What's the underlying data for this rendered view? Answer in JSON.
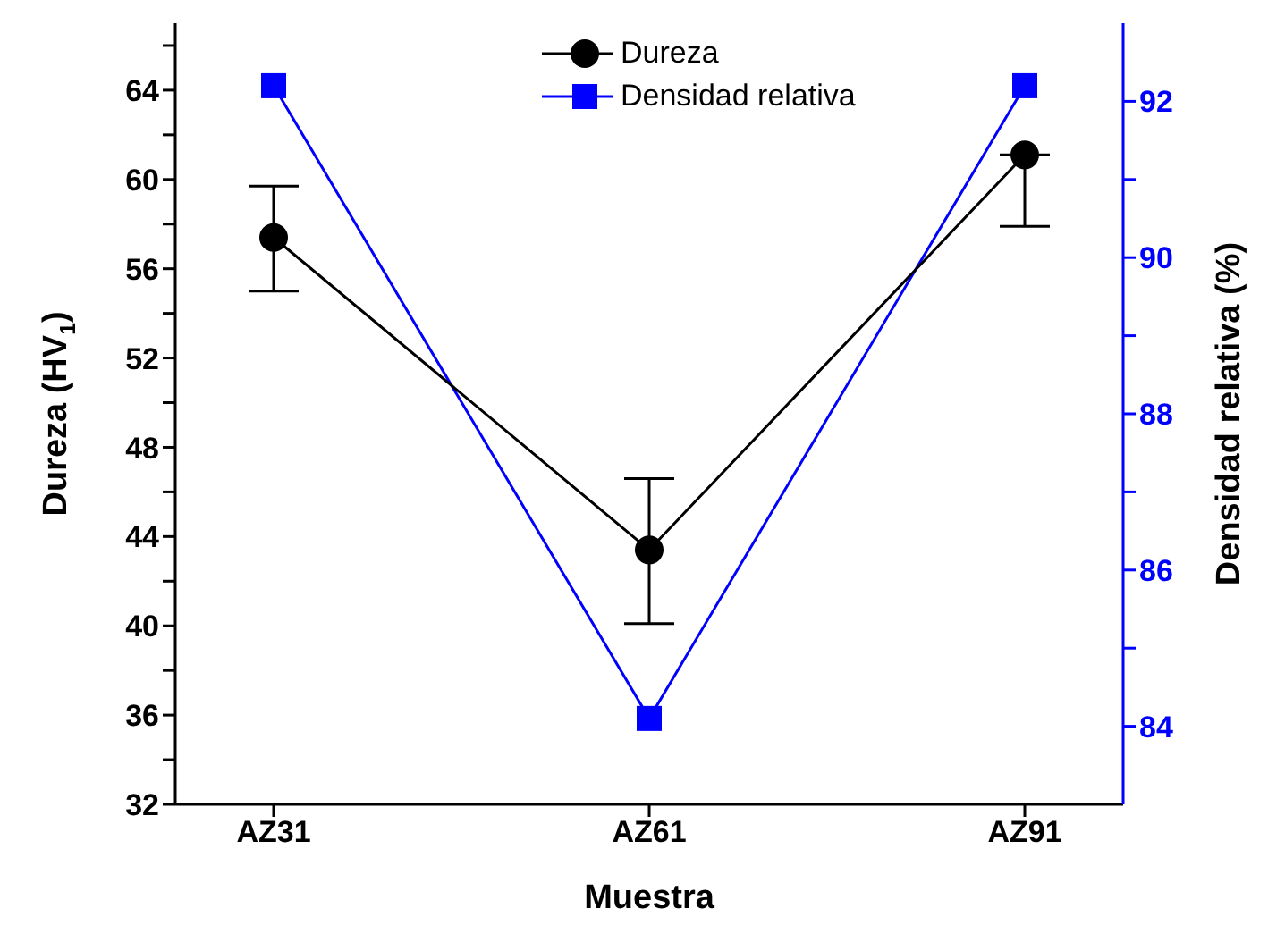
{
  "chart_data": {
    "type": "line",
    "xlabel": "Muestra",
    "ylabel": "Dureza (HV$_{1}$)",
    "y2label": "Densidad relativa (%)",
    "categories": [
      "AZ31",
      "AZ61",
      "AZ91"
    ],
    "series": [
      {
        "name": "Dureza",
        "color": "#000000",
        "marker": "circle",
        "values": [
          57.4,
          43.4,
          61.1
        ],
        "errors": [
          [
            55.0,
            59.7
          ],
          [
            40.1,
            46.6
          ],
          [
            57.9,
            61.1
          ]
        ]
      },
      {
        "name": "Densidad relativa",
        "color": "#0000ff",
        "marker": "square",
        "axis": "y2",
        "values": [
          92.2,
          84.1,
          92.2
        ]
      }
    ],
    "ylim": [
      32,
      67
    ],
    "yticks": [
      32,
      {
        "value": 34,
        "label": null
      },
      36,
      {
        "value": 38,
        "label": null
      },
      40,
      {
        "value": 42,
        "label": null
      },
      44,
      {
        "value": 46,
        "label": null
      },
      48,
      {
        "value": 50,
        "label": null
      },
      52,
      {
        "value": 54,
        "label": null
      },
      56,
      {
        "value": 58,
        "label": null
      },
      60,
      {
        "value": 62,
        "label": null
      },
      64,
      {
        "value": 66,
        "label": null
      }
    ],
    "y2lim": [
      83,
      93
    ],
    "y2ticks": [
      84,
      {
        "value": 85,
        "label": null
      },
      86,
      {
        "value": 87,
        "label": null
      },
      88,
      {
        "value": 89,
        "label": null
      },
      90,
      {
        "value": 91,
        "label": null
      },
      92
    ],
    "grid": false,
    "legend": "top",
    "line_style": "solid"
  }
}
